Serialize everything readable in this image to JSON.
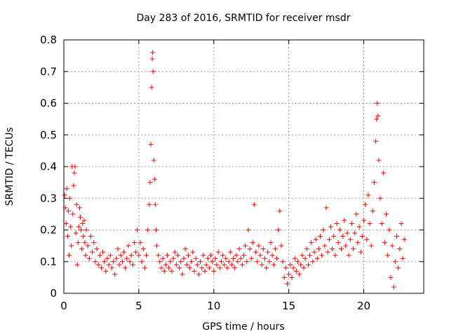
{
  "chart_data": {
    "type": "scatter",
    "title": "Day 283 of 2016, SRMTID for receiver msdr",
    "xlabel": "GPS time / hours",
    "ylabel": "SRMTID / TECUs",
    "xlim": [
      0,
      24
    ],
    "ylim": [
      0,
      0.8
    ],
    "xticks": [
      0,
      5,
      10,
      15,
      20
    ],
    "xtick_labels": [
      "0",
      "5",
      "10",
      "15",
      "20"
    ],
    "yticks": [
      0,
      0.1,
      0.2,
      0.3,
      0.4,
      0.5,
      0.6,
      0.7,
      0.8
    ],
    "ytick_labels": [
      "0",
      "0.1",
      "0.2",
      "0.3",
      "0.4",
      "0.5",
      "0.6",
      "0.7",
      "0.8"
    ],
    "grid": true,
    "marker": "+",
    "series": [
      {
        "name": "SRMTID",
        "color": "#ff0000",
        "points": [
          [
            0.05,
            0.31
          ],
          [
            0.1,
            0.27
          ],
          [
            0.15,
            0.22
          ],
          [
            0.2,
            0.33
          ],
          [
            0.25,
            0.18
          ],
          [
            0.3,
            0.26
          ],
          [
            0.35,
            0.12
          ],
          [
            0.4,
            0.3
          ],
          [
            0.45,
            0.21
          ],
          [
            0.5,
            0.15
          ],
          [
            0.55,
            0.4
          ],
          [
            0.6,
            0.25
          ],
          [
            0.65,
            0.34
          ],
          [
            0.7,
            0.38
          ],
          [
            0.75,
            0.4
          ],
          [
            0.8,
            0.19
          ],
          [
            0.85,
            0.28
          ],
          [
            0.9,
            0.09
          ],
          [
            0.95,
            0.16
          ],
          [
            1.0,
            0.21
          ],
          [
            1.05,
            0.27
          ],
          [
            1.1,
            0.24
          ],
          [
            1.15,
            0.2
          ],
          [
            1.2,
            0.14
          ],
          [
            1.25,
            0.22
          ],
          [
            1.3,
            0.18
          ],
          [
            1.35,
            0.23
          ],
          [
            1.4,
            0.16
          ],
          [
            1.45,
            0.12
          ],
          [
            1.5,
            0.2
          ],
          [
            1.6,
            0.15
          ],
          [
            1.7,
            0.11
          ],
          [
            1.8,
            0.18
          ],
          [
            1.9,
            0.13
          ],
          [
            2.0,
            0.16
          ],
          [
            2.1,
            0.1
          ],
          [
            2.2,
            0.14
          ],
          [
            2.3,
            0.09
          ],
          [
            2.4,
            0.12
          ],
          [
            2.5,
            0.08
          ],
          [
            2.6,
            0.13
          ],
          [
            2.7,
            0.1
          ],
          [
            2.8,
            0.07
          ],
          [
            2.9,
            0.11
          ],
          [
            3.0,
            0.09
          ],
          [
            3.1,
            0.12
          ],
          [
            3.2,
            0.08
          ],
          [
            3.3,
            0.1
          ],
          [
            3.4,
            0.06
          ],
          [
            3.5,
            0.11
          ],
          [
            3.6,
            0.14
          ],
          [
            3.7,
            0.09
          ],
          [
            3.8,
            0.12
          ],
          [
            3.9,
            0.1
          ],
          [
            4.0,
            0.13
          ],
          [
            4.1,
            0.08
          ],
          [
            4.2,
            0.11
          ],
          [
            4.3,
            0.15
          ],
          [
            4.4,
            0.1
          ],
          [
            4.5,
            0.12
          ],
          [
            4.6,
            0.09
          ],
          [
            4.7,
            0.16
          ],
          [
            4.8,
            0.13
          ],
          [
            4.9,
            0.2
          ],
          [
            5.0,
            0.12
          ],
          [
            5.1,
            0.16
          ],
          [
            5.2,
            0.1
          ],
          [
            5.3,
            0.14
          ],
          [
            5.4,
            0.08
          ],
          [
            5.5,
            0.12
          ],
          [
            5.6,
            0.2
          ],
          [
            5.7,
            0.28
          ],
          [
            5.75,
            0.35
          ],
          [
            5.8,
            0.47
          ],
          [
            5.85,
            0.65
          ],
          [
            5.9,
            0.74
          ],
          [
            5.92,
            0.76
          ],
          [
            5.95,
            0.7
          ],
          [
            6.0,
            0.42
          ],
          [
            6.05,
            0.36
          ],
          [
            6.1,
            0.28
          ],
          [
            6.15,
            0.2
          ],
          [
            6.2,
            0.15
          ],
          [
            6.3,
            0.12
          ],
          [
            6.4,
            0.1
          ],
          [
            6.5,
            0.08
          ],
          [
            6.6,
            0.11
          ],
          [
            6.7,
            0.07
          ],
          [
            6.8,
            0.09
          ],
          [
            6.9,
            0.12
          ],
          [
            7.0,
            0.08
          ],
          [
            7.1,
            0.1
          ],
          [
            7.2,
            0.07
          ],
          [
            7.3,
            0.11
          ],
          [
            7.4,
            0.13
          ],
          [
            7.5,
            0.09
          ],
          [
            7.6,
            0.12
          ],
          [
            7.7,
            0.08
          ],
          [
            7.8,
            0.1
          ],
          [
            7.9,
            0.06
          ],
          [
            8.0,
            0.11
          ],
          [
            8.1,
            0.14
          ],
          [
            8.2,
            0.09
          ],
          [
            8.3,
            0.12
          ],
          [
            8.4,
            0.08
          ],
          [
            8.5,
            0.1
          ],
          [
            8.6,
            0.13
          ],
          [
            8.7,
            0.07
          ],
          [
            8.8,
            0.11
          ],
          [
            8.9,
            0.09
          ],
          [
            9.0,
            0.06
          ],
          [
            9.1,
            0.1
          ],
          [
            9.2,
            0.08
          ],
          [
            9.3,
            0.12
          ],
          [
            9.4,
            0.07
          ],
          [
            9.5,
            0.09
          ],
          [
            9.6,
            0.11
          ],
          [
            9.7,
            0.08
          ],
          [
            9.8,
            0.12
          ],
          [
            9.9,
            0.1
          ],
          [
            10.0,
            0.07
          ],
          [
            10.1,
            0.11
          ],
          [
            10.2,
            0.09
          ],
          [
            10.3,
            0.13
          ],
          [
            10.4,
            0.08
          ],
          [
            10.5,
            0.1
          ],
          [
            10.6,
            0.12
          ],
          [
            10.7,
            0.09
          ],
          [
            10.8,
            0.11
          ],
          [
            10.9,
            0.08
          ],
          [
            11.0,
            0.1
          ],
          [
            11.1,
            0.13
          ],
          [
            11.2,
            0.09
          ],
          [
            11.3,
            0.11
          ],
          [
            11.4,
            0.08
          ],
          [
            11.5,
            0.12
          ],
          [
            11.6,
            0.1
          ],
          [
            11.7,
            0.14
          ],
          [
            11.8,
            0.11
          ],
          [
            11.9,
            0.09
          ],
          [
            12.0,
            0.12
          ],
          [
            12.1,
            0.15
          ],
          [
            12.2,
            0.1
          ],
          [
            12.3,
            0.2
          ],
          [
            12.4,
            0.14
          ],
          [
            12.5,
            0.11
          ],
          [
            12.6,
            0.16
          ],
          [
            12.7,
            0.28
          ],
          [
            12.8,
            0.13
          ],
          [
            12.9,
            0.1
          ],
          [
            13.0,
            0.15
          ],
          [
            13.1,
            0.12
          ],
          [
            13.2,
            0.09
          ],
          [
            13.3,
            0.14
          ],
          [
            13.4,
            0.11
          ],
          [
            13.5,
            0.08
          ],
          [
            13.6,
            0.13
          ],
          [
            13.7,
            0.1
          ],
          [
            13.8,
            0.16
          ],
          [
            13.9,
            0.12
          ],
          [
            14.0,
            0.09
          ],
          [
            14.1,
            0.14
          ],
          [
            14.2,
            0.11
          ],
          [
            14.3,
            0.2
          ],
          [
            14.4,
            0.26
          ],
          [
            14.5,
            0.15
          ],
          [
            14.6,
            0.1
          ],
          [
            14.7,
            0.05
          ],
          [
            14.8,
            0.08
          ],
          [
            14.9,
            0.03
          ],
          [
            15.0,
            0.06
          ],
          [
            15.1,
            0.09
          ],
          [
            15.2,
            0.05
          ],
          [
            15.3,
            0.08
          ],
          [
            15.4,
            0.11
          ],
          [
            15.5,
            0.07
          ],
          [
            15.6,
            0.1
          ],
          [
            15.7,
            0.06
          ],
          [
            15.8,
            0.09
          ],
          [
            15.9,
            0.12
          ],
          [
            16.0,
            0.08
          ],
          [
            16.1,
            0.11
          ],
          [
            16.2,
            0.14
          ],
          [
            16.3,
            0.09
          ],
          [
            16.4,
            0.12
          ],
          [
            16.5,
            0.16
          ],
          [
            16.6,
            0.1
          ],
          [
            16.7,
            0.13
          ],
          [
            16.8,
            0.17
          ],
          [
            16.9,
            0.11
          ],
          [
            17.0,
            0.14
          ],
          [
            17.1,
            0.18
          ],
          [
            17.2,
            0.12
          ],
          [
            17.3,
            0.2
          ],
          [
            17.4,
            0.15
          ],
          [
            17.5,
            0.27
          ],
          [
            17.6,
            0.13
          ],
          [
            17.7,
            0.17
          ],
          [
            17.8,
            0.21
          ],
          [
            17.9,
            0.14
          ],
          [
            18.0,
            0.18
          ],
          [
            18.1,
            0.12
          ],
          [
            18.2,
            0.22
          ],
          [
            18.3,
            0.16
          ],
          [
            18.4,
            0.2
          ],
          [
            18.5,
            0.14
          ],
          [
            18.6,
            0.18
          ],
          [
            18.7,
            0.23
          ],
          [
            18.8,
            0.15
          ],
          [
            18.9,
            0.19
          ],
          [
            19.0,
            0.12
          ],
          [
            19.1,
            0.17
          ],
          [
            19.2,
            0.22
          ],
          [
            19.3,
            0.14
          ],
          [
            19.4,
            0.19
          ],
          [
            19.5,
            0.25
          ],
          [
            19.6,
            0.16
          ],
          [
            19.7,
            0.21
          ],
          [
            19.8,
            0.13
          ],
          [
            19.9,
            0.18
          ],
          [
            20.0,
            0.23
          ],
          [
            20.1,
            0.28
          ],
          [
            20.2,
            0.17
          ],
          [
            20.3,
            0.31
          ],
          [
            20.4,
            0.22
          ],
          [
            20.5,
            0.15
          ],
          [
            20.6,
            0.26
          ],
          [
            20.7,
            0.35
          ],
          [
            20.8,
            0.48
          ],
          [
            20.85,
            0.55
          ],
          [
            20.9,
            0.6
          ],
          [
            20.95,
            0.56
          ],
          [
            21.0,
            0.42
          ],
          [
            21.1,
            0.3
          ],
          [
            21.2,
            0.22
          ],
          [
            21.3,
            0.38
          ],
          [
            21.4,
            0.16
          ],
          [
            21.5,
            0.25
          ],
          [
            21.6,
            0.12
          ],
          [
            21.7,
            0.2
          ],
          [
            21.8,
            0.05
          ],
          [
            21.9,
            0.15
          ],
          [
            22.0,
            0.02
          ],
          [
            22.1,
            0.1
          ],
          [
            22.2,
            0.18
          ],
          [
            22.3,
            0.08
          ],
          [
            22.4,
            0.14
          ],
          [
            22.5,
            0.22
          ],
          [
            22.6,
            0.11
          ],
          [
            22.7,
            0.17
          ]
        ]
      }
    ]
  }
}
